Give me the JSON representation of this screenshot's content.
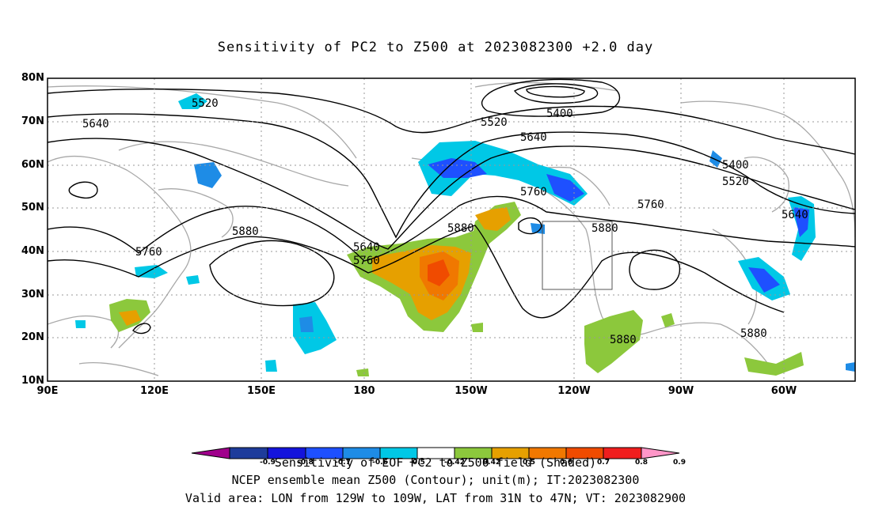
{
  "title": "Sensitivity of PC2 to Z500 at 2023082300 +2.0 day",
  "lat_labels": [
    "80N",
    "70N",
    "60N",
    "50N",
    "40N",
    "30N",
    "20N",
    "10N"
  ],
  "lon_labels": [
    "90E",
    "120E",
    "150E",
    "180",
    "150W",
    "120W",
    "90W",
    "60W"
  ],
  "contour_labels": [
    "5520",
    "5640",
    "5400",
    "5520",
    "5640",
    "5400",
    "5520",
    "5760",
    "5640",
    "5760",
    "5880",
    "5880",
    "5640",
    "5760",
    "5760",
    "5880",
    "5880",
    "5880"
  ],
  "colorbar": {
    "colors": [
      "#a0008c",
      "#1e3c9b",
      "#1414dc",
      "#1e50ff",
      "#1e8ce6",
      "#00c8e6",
      "#ffffff",
      "#8cc83c",
      "#e6a000",
      "#f07800",
      "#f04b00",
      "#f01e1e",
      "#ff96c8"
    ],
    "labels": [
      "-0.9",
      "-0.8",
      "-0.7",
      "-0.6",
      "-0.5",
      "-0.42",
      "0.42",
      "0.5",
      "0.6",
      "0.7",
      "0.8",
      "0.9"
    ]
  },
  "captions": [
    "Sensitivity of EOF PC2 to Z500 field (Shaded)",
    "NCEP ensemble mean Z500 (Contour); unit(m); IT:2023082300",
    "Valid area: LON from 129W to 109W, LAT from 31N to 47N; VT: 2023082900"
  ]
}
